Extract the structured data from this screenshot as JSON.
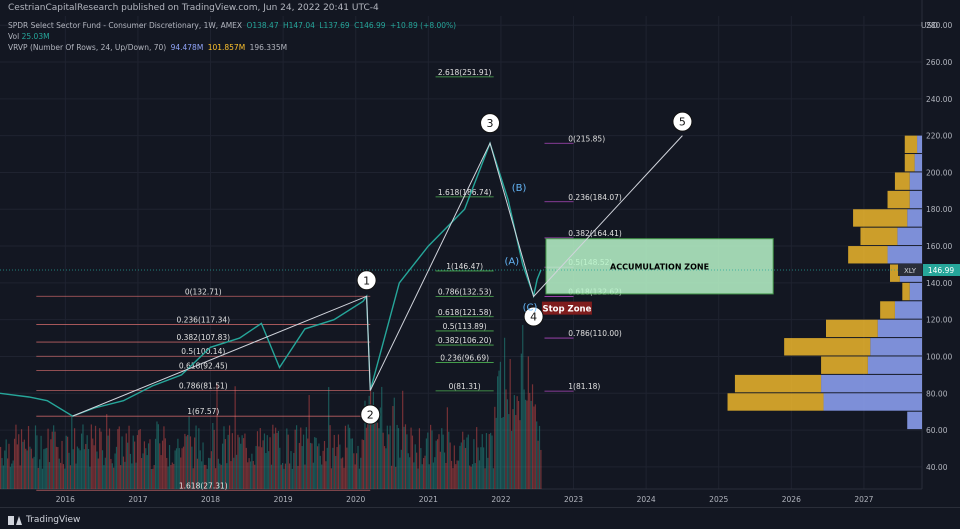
{
  "header": {
    "attribution": "CestrianCapitalResearch published on TradingView.com, Jun 24, 2022 20:41 UTC-4",
    "symbol_line": "SPDR Select Sector Fund - Consumer Discretionary, 1W, AMEX",
    "ohlc": {
      "open": "O138.47",
      "high": "H147.04",
      "low": "L137.69",
      "close": "C146.99",
      "change": "+10.89 (+8.00%)"
    },
    "vol_label": "Vol",
    "vol_value": "25.03M",
    "vrvp_label": "VRVP (Number Of Rows, 24, Up/Down, 70)",
    "vrvp_up": "94.478M",
    "vrvp_down": "101.857M",
    "vrvp_total": "196.335M"
  },
  "footer": {
    "brand": "TradingView"
  },
  "colors": {
    "background": "#131722",
    "up": "#26a69a",
    "down": "#ef5350",
    "fib_retrace": "#e57373",
    "fib_ext": "#4caf50",
    "fib_purple": "#ab47bc",
    "zone_fill": "#b9f6ca",
    "stop_fill": "#7f1d1d",
    "profile_up": "#90a4f8",
    "profile_down": "#fbc02d"
  },
  "chart_data": {
    "type": "candlestick",
    "currency_label": "USD",
    "y_ticks": [
      "280.00",
      "260.00",
      "240.00",
      "220.00",
      "200.00",
      "180.00",
      "160.00",
      "140.00",
      "120.00",
      "100.00",
      "80.00",
      "60.00",
      "40.00"
    ],
    "y_range": [
      28,
      285
    ],
    "x_ticks": [
      "2016",
      "2017",
      "2018",
      "2019",
      "2020",
      "2021",
      "2022",
      "2023",
      "2024",
      "2025",
      "2026",
      "2027"
    ],
    "x_range": [
      2015.1,
      2027.8
    ],
    "price_series": [
      [
        2015.1,
        80
      ],
      [
        2015.5,
        78
      ],
      [
        2015.75,
        76
      ],
      [
        2016.1,
        67.6
      ],
      [
        2016.4,
        72
      ],
      [
        2016.8,
        76
      ],
      [
        2017.2,
        84
      ],
      [
        2017.6,
        90
      ],
      [
        2018.0,
        105
      ],
      [
        2018.4,
        110
      ],
      [
        2018.7,
        118
      ],
      [
        2018.95,
        94
      ],
      [
        2019.3,
        115
      ],
      [
        2019.7,
        120
      ],
      [
        2020.1,
        130
      ],
      [
        2020.15,
        132.7
      ],
      [
        2020.2,
        81.5
      ],
      [
        2020.6,
        140
      ],
      [
        2021.0,
        160
      ],
      [
        2021.5,
        180
      ],
      [
        2021.85,
        215.9
      ],
      [
        2022.1,
        185
      ],
      [
        2022.3,
        150
      ],
      [
        2022.45,
        133
      ],
      [
        2022.5,
        142
      ],
      [
        2022.55,
        147
      ]
    ],
    "last_price": {
      "symbol": "XLY",
      "value": "146.99"
    },
    "volume_note": "weekly volume histogram along bottom",
    "wave_labels": [
      {
        "label": "1",
        "x": 2020.15,
        "y": 132.7
      },
      {
        "label": "2",
        "x": 2020.2,
        "y": 81.5
      },
      {
        "label": "3",
        "x": 2021.85,
        "y": 215.9
      },
      {
        "label": "4",
        "x": 2022.45,
        "y": 132.6
      },
      {
        "label": "5",
        "x": 2024.5,
        "y": 220
      },
      {
        "label": "(A)",
        "x": 2022.15,
        "y": 150
      },
      {
        "label": "(B)",
        "x": 2022.25,
        "y": 190
      },
      {
        "label": "(C)",
        "x": 2022.4,
        "y": 125
      }
    ],
    "fib_retracement_1": [
      {
        "label": "0(132.71)",
        "value": 132.71
      },
      {
        "label": "0.236(117.34)",
        "value": 117.34
      },
      {
        "label": "0.382(107.83)",
        "value": 107.83
      },
      {
        "label": "0.5(100.14)",
        "value": 100.14
      },
      {
        "label": "0.618(92.45)",
        "value": 92.45
      },
      {
        "label": "0.786(81.51)",
        "value": 81.51
      },
      {
        "label": "1(67.57)",
        "value": 67.57
      },
      {
        "label": "1.618(27.31)",
        "value": 27.31
      }
    ],
    "fib_extension_3": [
      {
        "label": "2.618(251.91)",
        "value": 251.91
      },
      {
        "label": "1.618(186.74)",
        "value": 186.74
      },
      {
        "label": "1(146.47)",
        "value": 146.47
      },
      {
        "label": "0.786(132.53)",
        "value": 132.53
      },
      {
        "label": "0.618(121.58)",
        "value": 121.58
      },
      {
        "label": "0.5(113.89)",
        "value": 113.89
      },
      {
        "label": "0.382(106.20)",
        "value": 106.2
      },
      {
        "label": "0.236(96.69)",
        "value": 96.69
      },
      {
        "label": "0(81.31)",
        "value": 81.31
      }
    ],
    "fib_retracement_2": [
      {
        "label": "0(215.85)",
        "value": 215.85
      },
      {
        "label": "0.236(184.07)",
        "value": 184.07
      },
      {
        "label": "0.382(164.41)",
        "value": 164.41
      },
      {
        "label": "0.5(148.52)",
        "value": 148.52
      },
      {
        "label": "0.618(132.62)",
        "value": 132.62
      },
      {
        "label": "0.786(110.00)",
        "value": 110.0
      },
      {
        "label": "1(81.18)",
        "value": 81.18
      }
    ],
    "zones": [
      {
        "label": "ACCUMULATION ZONE",
        "x_start": 2022.62,
        "x_end": 2025.75,
        "y_low": 134,
        "y_high": 164
      },
      {
        "label": "Stop Zone",
        "x": 2022.62,
        "y": 126
      }
    ],
    "volume_profile_rows": [
      {
        "price": 215,
        "up": 4,
        "down": 10
      },
      {
        "price": 205,
        "up": 6,
        "down": 8
      },
      {
        "price": 195,
        "up": 10,
        "down": 12
      },
      {
        "price": 185,
        "up": 10,
        "down": 18
      },
      {
        "price": 175,
        "up": 12,
        "down": 44
      },
      {
        "price": 165,
        "up": 20,
        "down": 30
      },
      {
        "price": 155,
        "up": 28,
        "down": 32
      },
      {
        "price": 145,
        "up": 18,
        "down": 8
      },
      {
        "price": 135,
        "up": 10,
        "down": 6
      },
      {
        "price": 125,
        "up": 22,
        "down": 12
      },
      {
        "price": 115,
        "up": 36,
        "down": 42
      },
      {
        "price": 105,
        "up": 42,
        "down": 70
      },
      {
        "price": 95,
        "up": 44,
        "down": 38
      },
      {
        "price": 85,
        "up": 82,
        "down": 70
      },
      {
        "price": 75,
        "up": 80,
        "down": 78
      },
      {
        "price": 65,
        "up": 12,
        "down": 0
      }
    ]
  }
}
